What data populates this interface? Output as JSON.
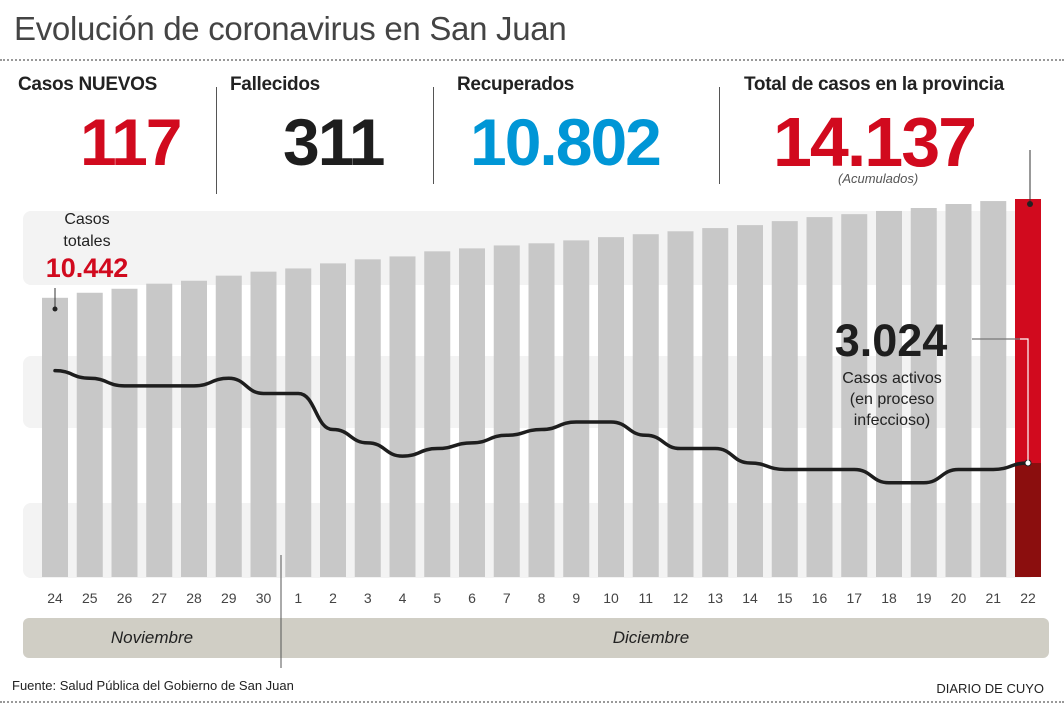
{
  "header": {
    "title": "Evolución de coronavirus en San Juan"
  },
  "stats": {
    "new_cases": {
      "label": "Casos NUEVOS",
      "value": "117",
      "color": "#d10a1e"
    },
    "deaths": {
      "label": "Fallecidos",
      "value": "311",
      "color": "#1e1e1e"
    },
    "recovered": {
      "label": "Recuperados",
      "value": "10.802",
      "color": "#0096d6"
    },
    "total": {
      "label": "Total de casos en la provincia",
      "value": "14.137",
      "note": "(Acumulados)",
      "color": "#d10a1e"
    }
  },
  "annotations": {
    "first_total_label_line1": "Casos",
    "first_total_label_line2": "totales",
    "first_total_value": "10.442",
    "active_value": "3.024",
    "active_label_line1": "Casos activos",
    "active_label_line2": "(en proceso",
    "active_label_line3": "infeccioso)"
  },
  "months": {
    "november": "Noviembre",
    "december": "Diciembre"
  },
  "footer": {
    "source": "Fuente: Salud Pública del Gobierno de San Juan",
    "brand": "DIARIO DE CUYO"
  },
  "colors": {
    "bar": "#c8c8c8",
    "highlight_bar": "#d10a1e",
    "highlight_active": "#8b0e0e",
    "line": "#1e1e1e",
    "band": "#f3f3f3",
    "month_bar": "#d0cec5"
  },
  "chart_data": {
    "type": "bar",
    "title": "Evolución de coronavirus en San Juan",
    "xlabel": "",
    "ylabel": "",
    "categories": [
      "24",
      "25",
      "26",
      "27",
      "28",
      "29",
      "30",
      "1",
      "2",
      "3",
      "4",
      "5",
      "6",
      "7",
      "8",
      "9",
      "10",
      "11",
      "12",
      "13",
      "14",
      "15",
      "16",
      "17",
      "18",
      "19",
      "20",
      "21",
      "22"
    ],
    "category_groups": [
      {
        "label": "Noviembre",
        "from": "24",
        "to": "30"
      },
      {
        "label": "Diciembre",
        "from": "1",
        "to": "22"
      }
    ],
    "series": [
      {
        "name": "Casos totales (acumulados)",
        "type": "bar",
        "values": [
          10442,
          10630,
          10780,
          10970,
          11080,
          11270,
          11420,
          11540,
          11730,
          11880,
          11990,
          12180,
          12290,
          12400,
          12480,
          12590,
          12710,
          12820,
          12930,
          13050,
          13160,
          13310,
          13460,
          13570,
          13690,
          13800,
          13950,
          14060,
          14137
        ]
      },
      {
        "name": "Casos activos (en proceso infeccioso)",
        "type": "line",
        "values": [
          3510,
          3470,
          3430,
          3430,
          3430,
          3470,
          3390,
          3390,
          3200,
          3130,
          3060,
          3100,
          3130,
          3170,
          3200,
          3240,
          3240,
          3170,
          3100,
          3100,
          3024,
          2990,
          2990,
          2990,
          2920,
          2920,
          2990,
          2990,
          3024
        ]
      }
    ],
    "labeled_points": [
      {
        "series": "Casos totales (acumulados)",
        "category": "24",
        "value": 10442
      },
      {
        "series": "Casos totales (acumulados)",
        "category": "22",
        "value": 14137
      },
      {
        "series": "Casos activos (en proceso infeccioso)",
        "category": "22",
        "value": 3024
      }
    ],
    "ylim": [
      0,
      14137
    ],
    "grid": false,
    "legend": "none"
  }
}
